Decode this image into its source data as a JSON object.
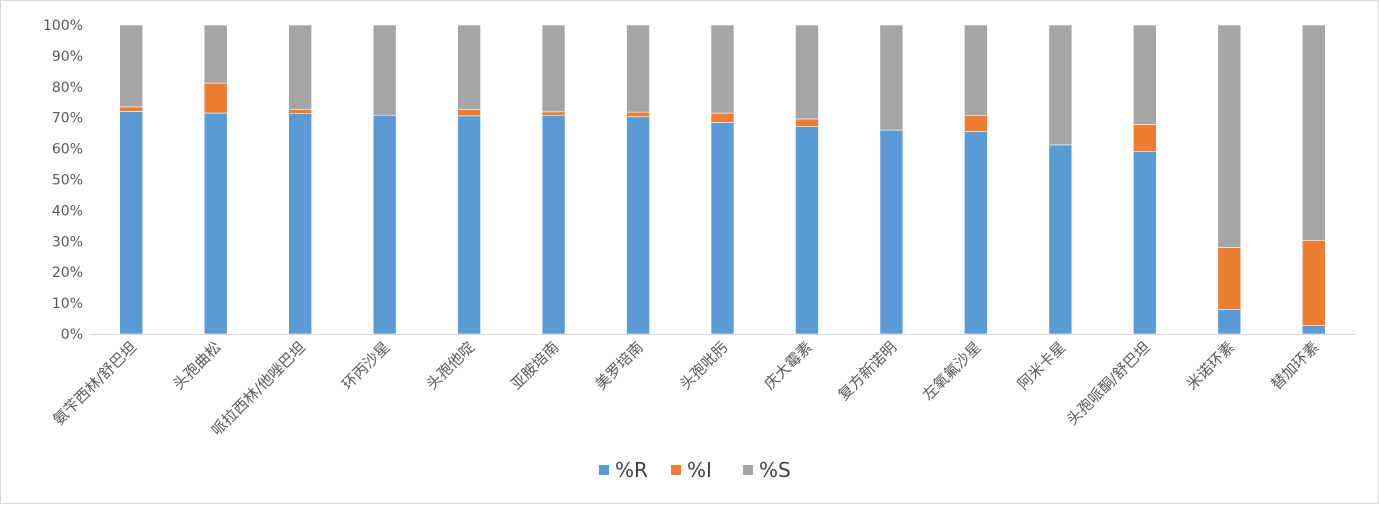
{
  "chart_data": {
    "type": "stacked-bar-100",
    "categories": [
      "氨苄西林/舒巴坦",
      "头孢曲松",
      "哌拉西林/他唑巴坦",
      "环丙沙星",
      "头孢他啶",
      "亚胺培南",
      "美罗培南",
      "头孢吡肟",
      "庆大霉素",
      "复方新诺明",
      "左氧氟沙星",
      "阿米卡星",
      "头孢哌酮/舒巴坦",
      "米诺环素",
      "替加环素"
    ],
    "series": [
      {
        "name": "%R",
        "color": "#5b9bd5",
        "values": [
          72,
          71.5,
          71.3,
          70.8,
          70.6,
          70.8,
          70.3,
          68.5,
          67.1,
          66,
          65.5,
          61.2,
          59,
          8,
          2.7
        ]
      },
      {
        "name": "%I",
        "color": "#ed7d31",
        "values": [
          1.5,
          9.7,
          1.3,
          0,
          2,
          1.1,
          1.5,
          3,
          2.5,
          0,
          5.3,
          0,
          8.8,
          20,
          27.5
        ]
      },
      {
        "name": "%S",
        "color": "#a5a5a5",
        "values": [
          26.5,
          18.8,
          27.4,
          29.2,
          27.4,
          28.1,
          28.2,
          28.5,
          30.4,
          34,
          29.2,
          38.8,
          32.2,
          72,
          69.8
        ]
      }
    ],
    "ylim": [
      0,
      100
    ],
    "yticks": [
      "0%",
      "10%",
      "20%",
      "30%",
      "40%",
      "50%",
      "60%",
      "70%",
      "80%",
      "90%",
      "100%"
    ],
    "grid": false,
    "legend": "bottom-center"
  }
}
